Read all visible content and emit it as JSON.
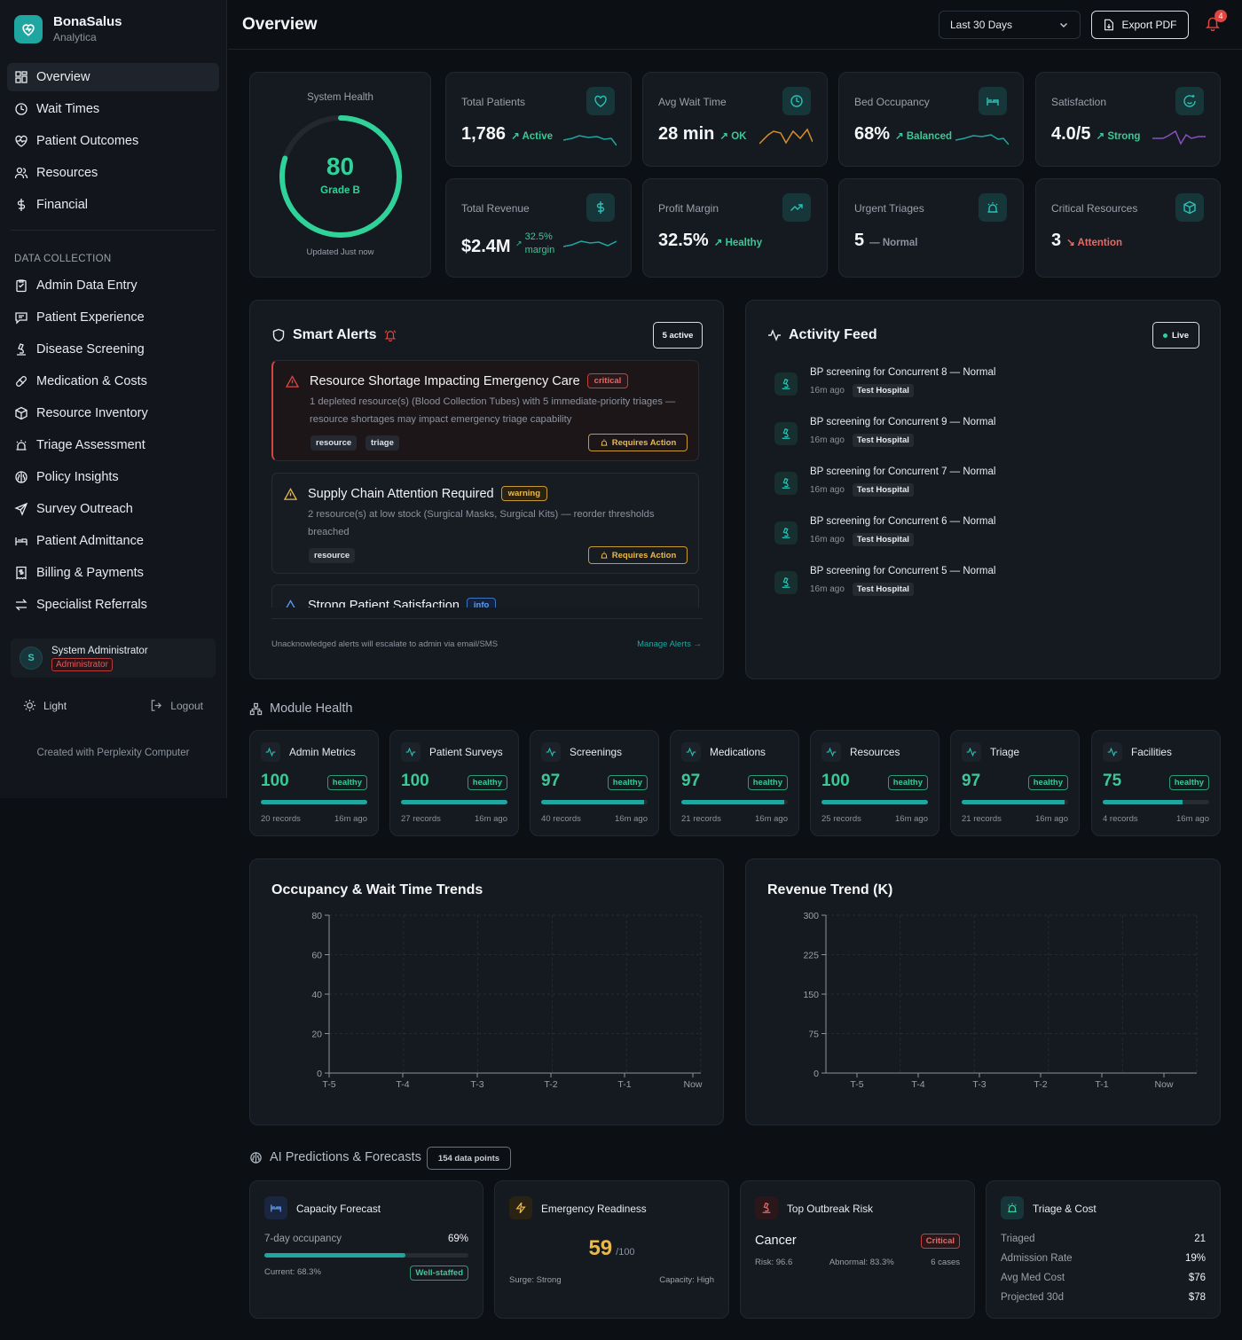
{
  "brand": {
    "name": "BonaSalus",
    "sub": "Analytica"
  },
  "nav": [
    {
      "label": "Overview",
      "icon": "grid-icon"
    },
    {
      "label": "Wait Times",
      "icon": "clock-icon"
    },
    {
      "label": "Patient Outcomes",
      "icon": "heart-pulse-icon"
    },
    {
      "label": "Resources",
      "icon": "users-icon"
    },
    {
      "label": "Financial",
      "icon": "dollar-icon"
    }
  ],
  "data_label": "DATA COLLECTION",
  "data_nav": [
    {
      "label": "Admin Data Entry"
    },
    {
      "label": "Patient Experience"
    },
    {
      "label": "Disease Screening"
    },
    {
      "label": "Medication & Costs"
    },
    {
      "label": "Resource Inventory"
    },
    {
      "label": "Triage Assessment"
    },
    {
      "label": "Policy Insights"
    },
    {
      "label": "Survey Outreach"
    },
    {
      "label": "Patient Admittance"
    },
    {
      "label": "Billing & Payments"
    },
    {
      "label": "Specialist Referrals"
    }
  ],
  "user": {
    "initial": "S",
    "name": "System Administrator",
    "role": "Administrator"
  },
  "theme_label": "Light",
  "logout_label": "Logout",
  "credit": "Created with Perplexity Computer",
  "header": {
    "title": "Overview",
    "range": "Last 30 Days",
    "export": "Export PDF",
    "notifications": "4"
  },
  "health": {
    "label": "System Health",
    "score": "80",
    "score_value": 80,
    "grade": "Grade B",
    "updated": "Updated Just now"
  },
  "kpis": [
    {
      "label": "Total Patients",
      "value": "1,786",
      "trend": "Active",
      "icon": "heart-icon",
      "color": "#1fa6a0"
    },
    {
      "label": "Avg Wait Time",
      "value": "28 min",
      "trend": "OK",
      "icon": "clock-icon",
      "color": "#d68f2a"
    },
    {
      "label": "Bed Occupancy",
      "value": "68%",
      "trend": "Balanced",
      "icon": "bed-icon",
      "color": "#1fa6a0"
    },
    {
      "label": "Satisfaction",
      "value": "4.0/5",
      "trend": "Strong",
      "icon": "smile-icon",
      "color": "#8b4fc4"
    },
    {
      "label": "Total Revenue",
      "value": "$2.4M",
      "trend_a": "32.5%",
      "trend_b": "margin",
      "icon": "dollar-icon",
      "color": "#1fa6a0"
    },
    {
      "label": "Profit Margin",
      "value": "32.5%",
      "trend": "Healthy",
      "icon": "trend-up-icon"
    },
    {
      "label": "Urgent Triages",
      "value": "5",
      "trend": "Normal",
      "icon": "siren-icon"
    },
    {
      "label": "Critical Resources",
      "value": "3",
      "trend": "Attention",
      "icon": "box-icon"
    }
  ],
  "alerts": {
    "title": "Smart Alerts",
    "count": "5 active",
    "footer": "Unacknowledged alerts will escalate to admin via email/SMS",
    "manage": "Manage Alerts →",
    "items": [
      {
        "title": "Resource Shortage Impacting Emergency Care",
        "severity": "critical",
        "desc": "1 depleted resource(s) (Blood Collection Tubes) with 5 immediate-priority triages — resource shortages may impact emergency triage capability",
        "tags": [
          "resource",
          "triage"
        ],
        "action": "Requires Action"
      },
      {
        "title": "Supply Chain Attention Required",
        "severity": "warning",
        "desc": "2 resource(s) at low stock (Surgical Masks, Surgical Kits) — reorder thresholds breached",
        "tags": [
          "resource"
        ],
        "action": "Requires Action"
      },
      {
        "title": "Strong Patient Satisfaction",
        "severity": "info"
      }
    ]
  },
  "feed": {
    "title": "Activity Feed",
    "live": "Live",
    "items": [
      {
        "text": "BP screening for Concurrent 8 — Normal",
        "time": "16m ago",
        "hospital": "Test Hospital"
      },
      {
        "text": "BP screening for Concurrent 9 — Normal",
        "time": "16m ago",
        "hospital": "Test Hospital"
      },
      {
        "text": "BP screening for Concurrent 7 — Normal",
        "time": "16m ago",
        "hospital": "Test Hospital"
      },
      {
        "text": "BP screening for Concurrent 6 — Normal",
        "time": "16m ago",
        "hospital": "Test Hospital"
      },
      {
        "text": "BP screening for Concurrent 5 — Normal",
        "time": "16m ago",
        "hospital": "Test Hospital"
      }
    ]
  },
  "module_health": {
    "title": "Module Health",
    "modules": [
      {
        "name": "Admin Metrics",
        "score": "100",
        "status": "healthy",
        "records": "20 records",
        "time": "16m ago",
        "level": 100
      },
      {
        "name": "Patient Surveys",
        "score": "100",
        "status": "healthy",
        "records": "27 records",
        "time": "16m ago",
        "level": 100
      },
      {
        "name": "Screenings",
        "score": "97",
        "status": "healthy",
        "records": "40 records",
        "time": "16m ago",
        "level": 97
      },
      {
        "name": "Medications",
        "score": "97",
        "status": "healthy",
        "records": "21 records",
        "time": "16m ago",
        "level": 97
      },
      {
        "name": "Resources",
        "score": "100",
        "status": "healthy",
        "records": "25 records",
        "time": "16m ago",
        "level": 100
      },
      {
        "name": "Triage",
        "score": "97",
        "status": "healthy",
        "records": "21 records",
        "time": "16m ago",
        "level": 97
      },
      {
        "name": "Facilities",
        "score": "75",
        "status": "healthy",
        "records": "4 records",
        "time": "16m ago",
        "level": 75
      }
    ]
  },
  "chart_data": [
    {
      "type": "line",
      "title": "Occupancy & Wait Time Trends",
      "categories": [
        "T-5",
        "T-4",
        "T-3",
        "T-2",
        "T-1",
        "Now"
      ],
      "yticks": [
        "0",
        "20",
        "40",
        "60",
        "80"
      ],
      "ylim": [
        0,
        80
      ],
      "series": [],
      "grid": true
    },
    {
      "type": "line",
      "title": "Revenue Trend (K)",
      "categories": [
        "T-5",
        "T-4",
        "T-3",
        "T-2",
        "T-1",
        "Now"
      ],
      "yticks": [
        "0",
        "75",
        "150",
        "225",
        "300"
      ],
      "ylim": [
        0,
        300
      ],
      "series": [],
      "grid": true
    }
  ],
  "predictions": {
    "title": "AI Predictions & Forecasts",
    "points": "154 data points",
    "capacity": {
      "title": "Capacity Forecast",
      "label": "7-day occupancy",
      "value": "69%",
      "level": 69,
      "current": "Current: 68.3%",
      "status": "Well-staffed"
    },
    "emergency": {
      "title": "Emergency Readiness",
      "score": "59",
      "max": "/100",
      "surge": "Surge: Strong",
      "capacity": "Capacity: High"
    },
    "outbreak": {
      "title": "Top Outbreak Risk",
      "disease": "Cancer",
      "severity": "Critical",
      "risk": "Risk: 96.6",
      "abnormal": "Abnormal: 83.3%",
      "cases": "6 cases"
    },
    "triage": {
      "title": "Triage & Cost",
      "rows": [
        {
          "label": "Triaged",
          "value": "21"
        },
        {
          "label": "Admission Rate",
          "value": "19%"
        },
        {
          "label": "Avg Med Cost",
          "value": "$76"
        },
        {
          "label": "Projected 30d",
          "value": "$78"
        }
      ]
    }
  }
}
